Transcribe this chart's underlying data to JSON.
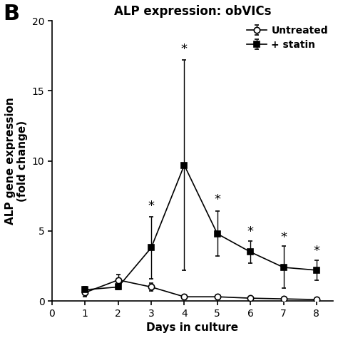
{
  "title": "ALP expression: obVICs",
  "panel_label": "B",
  "xlabel": "Days in culture",
  "ylabel": "ALP gene expression\n(fold change)",
  "xlim": [
    0,
    8.5
  ],
  "ylim": [
    0,
    20
  ],
  "yticks": [
    0,
    5,
    10,
    15,
    20
  ],
  "xticks": [
    0,
    1,
    2,
    3,
    4,
    5,
    6,
    7,
    8
  ],
  "days": [
    1,
    2,
    3,
    4,
    5,
    6,
    7,
    8
  ],
  "untreated_y": [
    0.6,
    1.5,
    1.0,
    0.3,
    0.3,
    0.2,
    0.15,
    0.1
  ],
  "untreated_err": [
    0.3,
    0.4,
    0.3,
    0.1,
    0.1,
    0.1,
    0.05,
    0.05
  ],
  "statin_y": [
    0.8,
    1.0,
    3.8,
    9.7,
    4.8,
    3.5,
    2.4,
    2.2
  ],
  "statin_err": [
    0.2,
    0.2,
    2.2,
    7.5,
    1.6,
    0.8,
    1.5,
    0.7
  ],
  "significance_days": [
    3,
    4,
    5,
    6,
    7,
    8
  ],
  "significance_y": [
    6.3,
    17.5,
    6.8,
    4.5,
    4.1,
    3.1
  ],
  "legend_untreated": "Untreated",
  "legend_statin": "+ statin",
  "background_color": "#ffffff",
  "line_color": "#000000",
  "title_fontsize": 12,
  "label_fontsize": 11,
  "tick_fontsize": 10,
  "legend_fontsize": 10,
  "asterisk_fontsize": 13,
  "panel_fontsize": 22
}
